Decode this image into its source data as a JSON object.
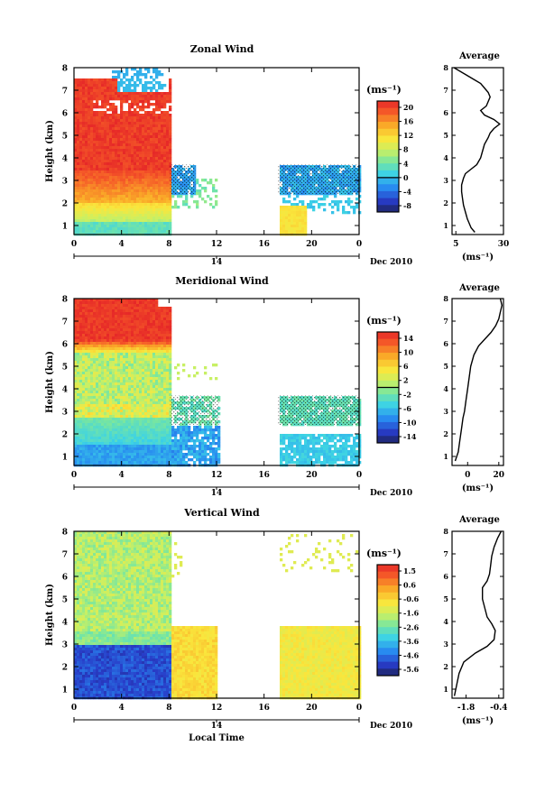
{
  "chart_data": [
    {
      "type": "heatmap",
      "title": "Zonal Wind",
      "ylabel": "Height (km)",
      "ylim": [
        0.6,
        8
      ],
      "yticks": [
        "1",
        "2",
        "3",
        "4",
        "5",
        "6",
        "7",
        "8"
      ],
      "xlim": [
        0,
        24
      ],
      "xticks": [
        "0",
        "4",
        "8",
        "12",
        "16",
        "20",
        "0"
      ],
      "date_marker": "14",
      "date_label": "Dec 2010",
      "unit": "(ms⁻¹)",
      "colorbar": {
        "ticks": [
          "20",
          "16",
          "12",
          "8",
          "4",
          "0",
          "-4",
          "-8"
        ],
        "range": [
          -10,
          22
        ]
      },
      "profile": {
        "title": "Average",
        "xlabel": "(ms⁻¹)",
        "xticks": [
          "5",
          "30"
        ],
        "xlim": [
          3,
          30
        ],
        "ylim": [
          0.6,
          8
        ],
        "yticks": [
          "1",
          "2",
          "3",
          "4",
          "5",
          "6",
          "7",
          "8"
        ],
        "points": [
          [
            15,
            0.7
          ],
          [
            13,
            0.9
          ],
          [
            12,
            1.1
          ],
          [
            11,
            1.3
          ],
          [
            10,
            1.6
          ],
          [
            9,
            1.9
          ],
          [
            8.5,
            2.2
          ],
          [
            8,
            2.5
          ],
          [
            8,
            2.8
          ],
          [
            9,
            3.1
          ],
          [
            10,
            3.3
          ],
          [
            13,
            3.5
          ],
          [
            16,
            3.7
          ],
          [
            18,
            4
          ],
          [
            19,
            4.3
          ],
          [
            20,
            4.6
          ],
          [
            22,
            4.9
          ],
          [
            23,
            5.1
          ],
          [
            25,
            5.3
          ],
          [
            28,
            5.5
          ],
          [
            25,
            5.7
          ],
          [
            20,
            5.9
          ],
          [
            18,
            6.1
          ],
          [
            21,
            6.3
          ],
          [
            22,
            6.5
          ],
          [
            23,
            6.7
          ],
          [
            22,
            6.9
          ],
          [
            20,
            7.1
          ],
          [
            18,
            7.3
          ],
          [
            14,
            7.5
          ],
          [
            10,
            7.7
          ],
          [
            6,
            7.9
          ],
          [
            4,
            8
          ]
        ]
      }
    },
    {
      "type": "heatmap",
      "title": "Meridional Wind",
      "ylabel": "Height (km)",
      "ylim": [
        0.6,
        8
      ],
      "yticks": [
        "1",
        "2",
        "3",
        "4",
        "5",
        "6",
        "7",
        "8"
      ],
      "xlim": [
        0,
        24
      ],
      "xticks": [
        "0",
        "4",
        "8",
        "12",
        "16",
        "20",
        "0"
      ],
      "date_marker": "14",
      "date_label": "Dec 2010",
      "unit": "(ms⁻¹)",
      "colorbar": {
        "ticks": [
          "14",
          "10",
          "6",
          "2",
          "-2",
          "-6",
          "-10",
          "-14"
        ],
        "range": [
          -16,
          16
        ]
      },
      "profile": {
        "title": "Average",
        "xlabel": "(ms⁻¹)",
        "xticks": [
          "0",
          "20"
        ],
        "xlim": [
          -10,
          23
        ],
        "ylim": [
          0.6,
          8
        ],
        "yticks": [
          "1",
          "2",
          "3",
          "4",
          "5",
          "6",
          "7",
          "8"
        ],
        "points": [
          [
            -8,
            0.8
          ],
          [
            -6,
            1.2
          ],
          [
            -5,
            1.7
          ],
          [
            -4,
            2.2
          ],
          [
            -3,
            2.7
          ],
          [
            -2,
            3.0
          ],
          [
            -1,
            3.5
          ],
          [
            0,
            4.0
          ],
          [
            1,
            4.5
          ],
          [
            2,
            5.0
          ],
          [
            4,
            5.5
          ],
          [
            7,
            5.9
          ],
          [
            11,
            6.2
          ],
          [
            15,
            6.5
          ],
          [
            18,
            6.8
          ],
          [
            20,
            7.1
          ],
          [
            21,
            7.4
          ],
          [
            22,
            7.7
          ],
          [
            21,
            8
          ]
        ]
      }
    },
    {
      "type": "heatmap",
      "title": "Vertical Wind",
      "ylabel": "Height (km)",
      "xlabel": "Local Time",
      "ylim": [
        0.6,
        8
      ],
      "yticks": [
        "1",
        "2",
        "3",
        "4",
        "5",
        "6",
        "7",
        "8"
      ],
      "xlim": [
        0,
        24
      ],
      "xticks": [
        "0",
        "4",
        "8",
        "12",
        "16",
        "20",
        "0"
      ],
      "date_marker": "14",
      "date_label": "Dec 2010",
      "unit": "(ms⁻¹)",
      "colorbar": {
        "ticks": [
          "1.5",
          "0.6",
          "-0.6",
          "-1.6",
          "-2.6",
          "-3.6",
          "-4.6",
          "-5.6"
        ],
        "range": [
          -6,
          2
        ]
      },
      "profile": {
        "title": "Average",
        "xlabel": "(ms⁻¹)",
        "xticks": [
          "-1.8",
          "-0.4"
        ],
        "xlim": [
          -2.4,
          -0.2
        ],
        "ylim": [
          0.6,
          8
        ],
        "yticks": [
          "1",
          "2",
          "3",
          "4",
          "5",
          "6",
          "7",
          "8"
        ],
        "points": [
          [
            -2.3,
            0.7
          ],
          [
            -2.2,
            1.2
          ],
          [
            -2.1,
            1.7
          ],
          [
            -1.9,
            2.2
          ],
          [
            -1.4,
            2.6
          ],
          [
            -0.9,
            2.9
          ],
          [
            -0.6,
            3.2
          ],
          [
            -0.55,
            3.6
          ],
          [
            -0.7,
            3.9
          ],
          [
            -0.9,
            4.2
          ],
          [
            -1.0,
            4.6
          ],
          [
            -1.1,
            5.0
          ],
          [
            -1.1,
            5.5
          ],
          [
            -0.9,
            5.8
          ],
          [
            -0.8,
            6.1
          ],
          [
            -0.75,
            6.5
          ],
          [
            -0.7,
            6.9
          ],
          [
            -0.6,
            7.3
          ],
          [
            -0.45,
            7.7
          ],
          [
            -0.3,
            8
          ]
        ]
      }
    }
  ]
}
